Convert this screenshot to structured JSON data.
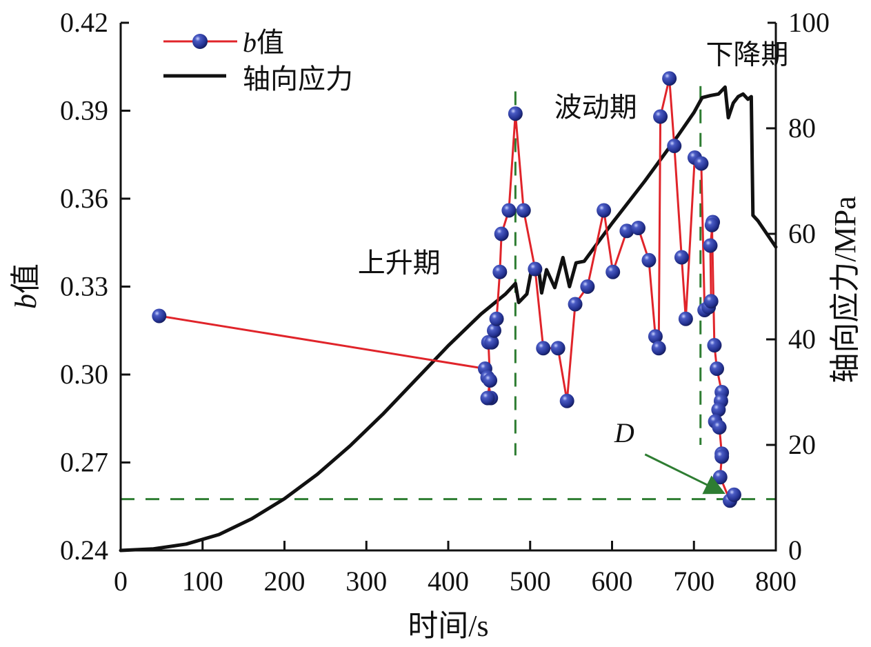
{
  "chart_data": {
    "type": "line",
    "title": "",
    "xlabel": "时间/s",
    "ylabel_left": "b值",
    "ylabel_right": "轴向应力/MPa",
    "xlim": [
      0,
      800
    ],
    "ylim_left": [
      0.24,
      0.42
    ],
    "ylim_right": [
      0,
      100
    ],
    "x_ticks": [
      "0",
      "100",
      "200",
      "300",
      "400",
      "500",
      "600",
      "700",
      "800"
    ],
    "x_tick_values": [
      0,
      100,
      200,
      300,
      400,
      500,
      600,
      700,
      800
    ],
    "y_left_ticks": [
      "0.24",
      "0.27",
      "0.30",
      "0.33",
      "0.36",
      "0.39",
      "0.42"
    ],
    "y_left_tick_values": [
      0.24,
      0.27,
      0.3,
      0.33,
      0.36,
      0.39,
      0.42
    ],
    "y_right_ticks": [
      "0",
      "20",
      "40",
      "60",
      "80",
      "100"
    ],
    "y_right_tick_values": [
      0,
      20,
      40,
      60,
      80,
      100
    ],
    "grid": false,
    "legend": {
      "position": "top-left",
      "entries": [
        {
          "label_italic": "b",
          "label": "值",
          "color": "#e0242a",
          "marker_color": "#2b3a9a"
        },
        {
          "label": "轴向应力",
          "color": "#111111"
        }
      ]
    },
    "series": [
      {
        "name": "b值",
        "axis": "left",
        "color": "#e0242a",
        "marker_color": "#2b3a9a",
        "x": [
          47,
          445,
          448,
          452,
          448,
          451,
          449,
          453,
          456,
          459,
          463,
          465,
          474,
          482,
          492,
          506,
          516,
          534,
          545,
          555,
          570,
          590,
          601,
          618,
          632,
          645,
          653,
          657,
          659,
          670,
          676,
          685,
          690,
          701,
          709,
          713,
          718,
          721,
          720,
          723,
          722,
          725,
          728,
          734,
          733,
          730,
          726,
          731,
          734,
          734,
          732,
          744,
          749
        ],
        "y": [
          0.32,
          0.302,
          0.299,
          0.292,
          0.292,
          0.298,
          0.311,
          0.311,
          0.315,
          0.319,
          0.335,
          0.348,
          0.356,
          0.389,
          0.356,
          0.336,
          0.309,
          0.309,
          0.291,
          0.324,
          0.33,
          0.356,
          0.335,
          0.349,
          0.35,
          0.339,
          0.313,
          0.309,
          0.388,
          0.401,
          0.378,
          0.34,
          0.319,
          0.374,
          0.372,
          0.322,
          0.323,
          0.325,
          0.344,
          0.352,
          0.351,
          0.31,
          0.302,
          0.294,
          0.291,
          0.288,
          0.284,
          0.282,
          0.273,
          0.272,
          0.265,
          0.257,
          0.259
        ]
      },
      {
        "name": "轴向应力",
        "axis": "right",
        "color": "#111111",
        "x": [
          0,
          40,
          80,
          120,
          160,
          200,
          240,
          280,
          320,
          360,
          400,
          440,
          470,
          482,
          486,
          496,
          502,
          510,
          514,
          520,
          530,
          540,
          548,
          556,
          566,
          574,
          600,
          640,
          680,
          700,
          710,
          720,
          730,
          738,
          742,
          748,
          754,
          760,
          766,
          770,
          772,
          778,
          800
        ],
        "y": [
          0,
          0.3,
          1.2,
          3.0,
          6.0,
          9.8,
          14.4,
          19.8,
          25.8,
          32.3,
          38.8,
          44.8,
          48.6,
          50.6,
          47.0,
          48.6,
          53.5,
          54.0,
          48.8,
          53.2,
          49.8,
          55.5,
          50.0,
          54.5,
          54.8,
          56.5,
          62.0,
          70.0,
          78.5,
          83.0,
          85.8,
          86.2,
          86.5,
          87.8,
          82.0,
          84.8,
          86.0,
          86.5,
          85.5,
          86.0,
          63.5,
          62.5,
          57.5
        ]
      }
    ],
    "reference_lines": {
      "vertical": [
        {
          "x": 482,
          "y_range_right": [
            18,
            87
          ],
          "color": "#2e7d32"
        },
        {
          "x": 708,
          "y_range_right": [
            20,
            88
          ],
          "color": "#2e7d32"
        }
      ],
      "horizontal": [
        {
          "y_left": 0.2575,
          "color": "#2e7d32"
        }
      ]
    },
    "annotations": [
      {
        "text": "上升期",
        "x": 340,
        "y_left": 0.335
      },
      {
        "text": "波动期",
        "x": 580,
        "y_left": 0.388
      },
      {
        "text": "下降期",
        "x": 765,
        "y_left": 0.406
      },
      {
        "text": "D",
        "x": 615,
        "y_left": 0.277,
        "italic": true,
        "arrow_to": {
          "x": 744,
          "y_left": 0.2585
        },
        "arrow_color": "#2e7d32"
      }
    ]
  }
}
